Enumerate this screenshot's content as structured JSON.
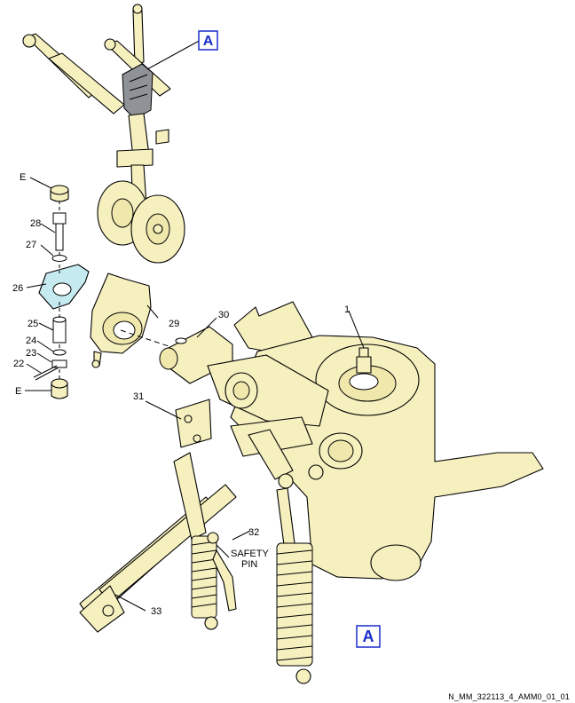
{
  "colors": {
    "part_fill": "#f6f0bf",
    "highlight_fill": "#c5eaf0",
    "detail_tag": "#1a2cc9"
  },
  "detail_tag_top": "A",
  "detail_tag_bottom": "A",
  "labels": {
    "e_top": "E",
    "e_bottom": "E",
    "p1": "1",
    "p22": "22",
    "p23": "23",
    "p24": "24",
    "p25": "25",
    "p26": "26",
    "p27": "27",
    "p28": "28",
    "p29": "29",
    "p30": "30",
    "p31": "31",
    "p32": "32",
    "p33": "33",
    "safety_line1": "SAFETY",
    "safety_line2": "PIN"
  },
  "figure_ref": "N_MM_322113_4_AMM0_01_01"
}
